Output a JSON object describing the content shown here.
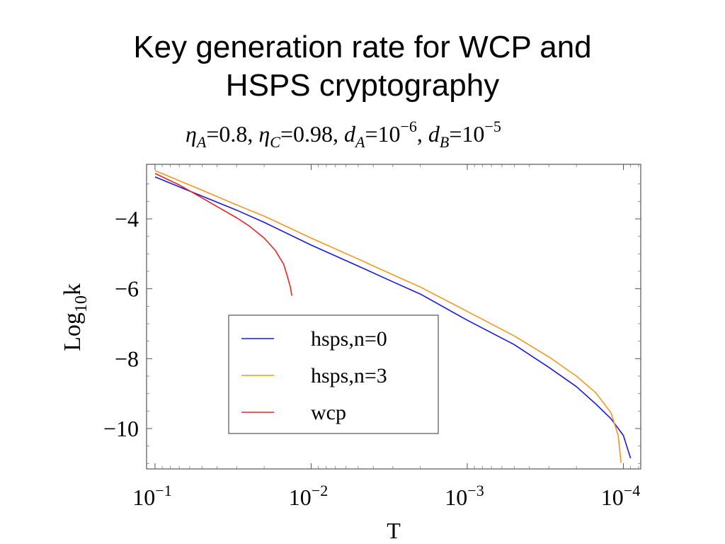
{
  "slide": {
    "title_line1": "Key generation rate for WCP and",
    "title_line2": "HSPS cryptography"
  },
  "chart_data": {
    "type": "line",
    "title": "ηA=0.8, ηC=0.98, dA=10−6, dB=10−5",
    "title_parts": [
      {
        "t": "η",
        "style": "italic"
      },
      {
        "t": "A",
        "style": "italic-sub"
      },
      {
        "t": "=0.8, ",
        "style": "normal"
      },
      {
        "t": "η",
        "style": "italic"
      },
      {
        "t": "C",
        "style": "italic-sub"
      },
      {
        "t": "=0.98, ",
        "style": "normal"
      },
      {
        "t": "d",
        "style": "italic"
      },
      {
        "t": "A",
        "style": "italic-sub"
      },
      {
        "t": "=10",
        "style": "normal"
      },
      {
        "t": "−6",
        "style": "sup"
      },
      {
        "t": ", ",
        "style": "normal"
      },
      {
        "t": "d",
        "style": "italic"
      },
      {
        "t": "B",
        "style": "italic-sub"
      },
      {
        "t": "=10",
        "style": "normal"
      },
      {
        "t": "−5",
        "style": "sup"
      }
    ],
    "xlabel": "T",
    "ylabel": "Log10k",
    "ylabel_parts": {
      "main": "Log",
      "sub": "10",
      "end": "k"
    },
    "x_scale": "log",
    "x_reversed": true,
    "xlim": [
      0.1,
      8e-05
    ],
    "ylim": [
      -11.1,
      -2.55
    ],
    "x_ticks": [
      {
        "value": 0.1,
        "base": "10",
        "exp": "−1"
      },
      {
        "value": 0.01,
        "base": "10",
        "exp": "−2"
      },
      {
        "value": 0.001,
        "base": "10",
        "exp": "−3"
      },
      {
        "value": 0.0001,
        "base": "10",
        "exp": "−4"
      }
    ],
    "y_ticks": [
      {
        "value": -4,
        "label": "−4"
      },
      {
        "value": -6,
        "label": "−6"
      },
      {
        "value": -8,
        "label": "−8"
      },
      {
        "value": -10,
        "label": "−10"
      }
    ],
    "grid": false,
    "legend_position": "center-bottom",
    "series": [
      {
        "name": "hsps,n=0",
        "color": "#1a1adb",
        "x": [
          0.1,
          0.05,
          0.03,
          0.02,
          0.01,
          0.005,
          0.003,
          0.002,
          0.001,
          0.0005,
          0.0003,
          0.0002,
          0.00015,
          0.00012,
          0.0001,
          9e-05
        ],
        "y": [
          -2.8,
          -3.35,
          -3.75,
          -4.1,
          -4.75,
          -5.35,
          -5.8,
          -6.15,
          -6.9,
          -7.6,
          -8.25,
          -8.8,
          -9.3,
          -9.72,
          -10.2,
          -10.85
        ]
      },
      {
        "name": "hsps,n=3",
        "color": "#f5961e",
        "x": [
          0.1,
          0.05,
          0.03,
          0.02,
          0.01,
          0.005,
          0.003,
          0.002,
          0.001,
          0.0005,
          0.0003,
          0.0002,
          0.00015,
          0.00012,
          0.000108,
          0.0001035
        ],
        "y": [
          -2.62,
          -3.18,
          -3.6,
          -3.92,
          -4.55,
          -5.15,
          -5.6,
          -5.95,
          -6.65,
          -7.35,
          -7.95,
          -8.5,
          -8.98,
          -9.55,
          -10.2,
          -10.98
        ]
      },
      {
        "name": "wcp",
        "color": "#e8242a",
        "x": [
          0.1,
          0.07,
          0.05,
          0.04,
          0.03,
          0.025,
          0.02,
          0.017,
          0.015,
          0.0142,
          0.0136,
          0.0133
        ],
        "y": [
          -2.7,
          -3.03,
          -3.4,
          -3.65,
          -3.97,
          -4.2,
          -4.55,
          -4.9,
          -5.3,
          -5.65,
          -5.95,
          -6.2
        ]
      }
    ]
  }
}
